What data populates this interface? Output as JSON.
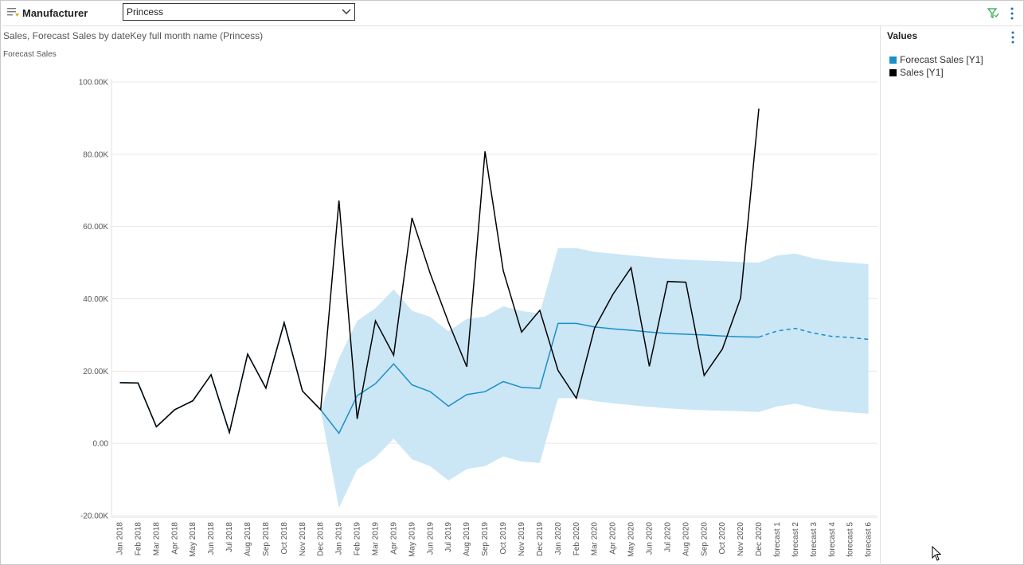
{
  "filter": {
    "label": "Manufacturer",
    "selected": "Princess",
    "icon": "slicer-icon"
  },
  "toolbar": {
    "filter_icon": "funnel-icon",
    "more_icon": "more-vertical-icon"
  },
  "chart_data": {
    "type": "line",
    "title": "Sales, Forecast Sales by dateKey full month name (Princess)",
    "ylabel": "Forecast Sales",
    "xlabel": "",
    "ylim": [
      -20000,
      100000
    ],
    "yticks": [
      "100.00K",
      "80.00K",
      "60.00K",
      "40.00K",
      "20.00K",
      "0.00",
      "-20.00K"
    ],
    "grid": true,
    "legend_position": "right",
    "legend_title": "Values",
    "categories": [
      "Jan 2018",
      "Feb 2018",
      "Mar 2018",
      "Apr 2018",
      "May 2018",
      "Jun 2018",
      "Jul 2018",
      "Aug 2018",
      "Sep 2018",
      "Oct 2018",
      "Nov 2018",
      "Dec 2018",
      "Jan 2019",
      "Feb 2019",
      "Mar 2019",
      "Apr 2019",
      "May 2019",
      "Jun 2019",
      "Jul 2019",
      "Aug 2019",
      "Sep 2019",
      "Oct 2019",
      "Nov 2019",
      "Dec 2019",
      "Jan 2020",
      "Feb 2020",
      "Mar 2020",
      "Apr 2020",
      "May 2020",
      "Jun 2020",
      "Jul 2020",
      "Aug 2020",
      "Sep 2020",
      "Oct 2020",
      "Nov 2020",
      "Dec 2020",
      "forecast 1",
      "forecast 2",
      "forecast 3",
      "forecast 4",
      "forecast 5",
      "forecast 6"
    ],
    "series": [
      {
        "name": "Forecast Sales [Y1]",
        "color": "#1a8fc9",
        "values": [
          16800,
          16700,
          4600,
          9300,
          11800,
          19000,
          3000,
          24700,
          15300,
          33400,
          14500,
          9300,
          2800,
          13200,
          16500,
          22000,
          16200,
          14300,
          10300,
          13500,
          14300,
          17100,
          15500,
          15200,
          33200,
          33200,
          32200,
          31700,
          31300,
          30800,
          30400,
          30200,
          30000,
          29700,
          29500,
          29400,
          31100,
          31800,
          30500,
          29600,
          29300,
          28800
        ],
        "forecast_from_index": 35
      },
      {
        "name": "Sales [Y1]",
        "color": "#000000",
        "values": [
          16800,
          16700,
          4600,
          9300,
          11800,
          19000,
          3000,
          24700,
          15300,
          33400,
          14500,
          9300,
          67200,
          6800,
          33900,
          24400,
          62400,
          47000,
          33500,
          21200,
          80800,
          47800,
          30800,
          36800,
          20200,
          12500,
          31900,
          41200,
          48600,
          21300,
          44800,
          44600,
          18800,
          26100,
          40200,
          92600,
          null,
          null,
          null,
          null,
          null,
          null
        ]
      }
    ],
    "confidence_band": {
      "color": "#cbe6f5",
      "start_index": 11,
      "upper": [
        9300,
        23500,
        33900,
        37400,
        42600,
        36700,
        35000,
        31000,
        34400,
        35100,
        37900,
        36600,
        36000,
        54000,
        54000,
        53000,
        52500,
        52000,
        51500,
        51100,
        50800,
        50600,
        50400,
        50200,
        50000,
        52000,
        52500,
        51200,
        50400,
        50000,
        49600
      ],
      "lower": [
        9300,
        -17800,
        -7200,
        -3900,
        1300,
        -4400,
        -6300,
        -10300,
        -7100,
        -6300,
        -3600,
        -5000,
        -5400,
        12500,
        12500,
        11700,
        11100,
        10600,
        10100,
        9700,
        9400,
        9200,
        9000,
        8900,
        8700,
        10200,
        11000,
        9800,
        9000,
        8600,
        8200
      ]
    }
  },
  "cursor_icon": "mouse-pointer-icon"
}
